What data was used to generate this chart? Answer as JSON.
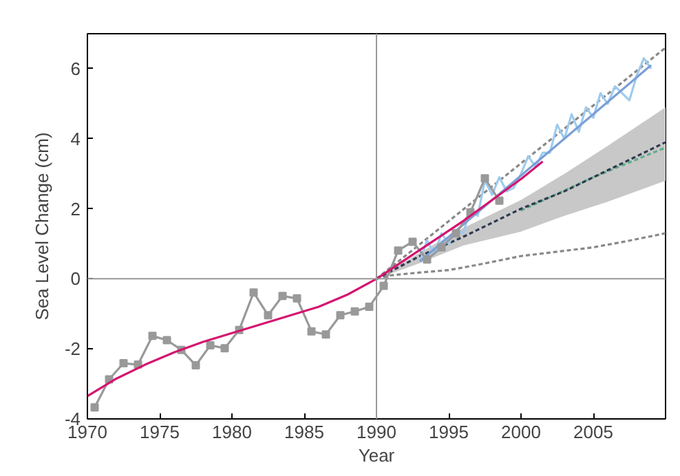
{
  "chart_data": {
    "type": "line",
    "xlabel": "Year",
    "ylabel": "Sea Level Change (cm)",
    "xlim": [
      1970,
      2010
    ],
    "ylim": [
      -4,
      7
    ],
    "xticks": [
      1970,
      1975,
      1980,
      1985,
      1990,
      1995,
      2000,
      2005
    ],
    "yticks": [
      -4,
      -2,
      0,
      2,
      4,
      6
    ],
    "grid": false,
    "ref_lines": [
      {
        "axis": "x",
        "value": 1990,
        "color": "#999999"
      },
      {
        "axis": "y",
        "value": 0,
        "color": "#999999"
      }
    ],
    "series": [
      {
        "color": "#888888",
        "marker": "none",
        "line_style": "dashed",
        "x": [
          1990,
          1991,
          1993,
          1995,
          1997,
          2000,
          2003,
          2005,
          2007,
          2010
        ],
        "values": [
          0,
          0.1,
          0.18,
          0.25,
          0.4,
          0.65,
          0.8,
          0.9,
          1.05,
          1.3
        ]
      },
      {
        "color": "#888888",
        "marker": "none",
        "line_style": "dashed",
        "x": [
          1990,
          2010
        ],
        "values": [
          0,
          6.6
        ]
      },
      {
        "color": "#5fae8a",
        "marker": "none",
        "line_style": "dashed",
        "x": [
          2000,
          2005,
          2010
        ],
        "values": [
          1.95,
          2.9,
          3.75
        ]
      },
      {
        "color": "#2f3a4f",
        "marker": "none",
        "line_style": "dashed",
        "x": [
          1990,
          1993,
          1996,
          2000,
          2003,
          2006,
          2010
        ],
        "lower": [
          0,
          0.45,
          0.95,
          1.35,
          1.8,
          2.2,
          2.8
        ],
        "upper": [
          0,
          0.75,
          1.45,
          2.25,
          3.0,
          3.8,
          4.9
        ],
        "values": [
          0,
          0.65,
          1.2,
          2.0,
          2.5,
          3.1,
          3.9
        ]
      },
      {
        "color": "#9ecbee",
        "marker": "none",
        "line_style": "solid",
        "x": [
          1993,
          1993.5,
          1994,
          1994.5,
          1995,
          1995.5,
          1996,
          1996.5,
          1997,
          1997.5,
          1998,
          1998.5,
          1999,
          1999.5,
          2000,
          2000.5,
          2001,
          2001.5,
          2002,
          2002.5,
          2003,
          2003.5,
          2004,
          2004.5,
          2005,
          2005.5,
          2006,
          2006.5,
          2007,
          2007.5,
          2008,
          2008.5,
          2009
        ],
        "values": [
          0.5,
          1.1,
          0.7,
          1.3,
          1.0,
          1.4,
          1.3,
          2.0,
          1.8,
          2.8,
          2.4,
          2.9,
          2.5,
          2.6,
          3.0,
          3.5,
          3.2,
          3.6,
          3.6,
          4.4,
          4.0,
          4.7,
          4.2,
          4.9,
          4.6,
          5.3,
          5.0,
          5.5,
          5.3,
          5.1,
          5.8,
          6.3,
          6.0
        ]
      },
      {
        "color": "#7a9fd6",
        "marker": "none",
        "line_style": "solid",
        "x": [
          1993,
          2009
        ],
        "values": [
          0.5,
          6.1
        ]
      },
      {
        "color": "#999999",
        "marker": "square",
        "line_style": "solid",
        "x": [
          1970.5,
          1971.5,
          1972.5,
          1973.5,
          1974.5,
          1975.5,
          1976.5,
          1977.5,
          1978.5,
          1979.5,
          1980.5,
          1981.5,
          1982.5,
          1983.5,
          1984.5,
          1985.5,
          1986.5,
          1987.5,
          1988.5,
          1989.5,
          1990.5,
          1991.5,
          1992.5,
          1993.5,
          1994.5,
          1995.5,
          1996.5,
          1997.5,
          1998.5
        ],
        "values": [
          -3.67,
          -2.87,
          -2.41,
          -2.45,
          -1.63,
          -1.75,
          -2.03,
          -2.47,
          -1.9,
          -1.98,
          -1.46,
          -0.39,
          -1.04,
          -0.49,
          -0.56,
          -1.5,
          -1.59,
          -1.04,
          -0.93,
          -0.8,
          -0.2,
          0.81,
          1.06,
          0.55,
          0.9,
          1.3,
          1.9,
          2.87,
          2.23
        ]
      },
      {
        "color": "#d4146f",
        "marker": "none",
        "line_style": "solid",
        "x": [
          1970,
          1972,
          1974,
          1976,
          1978,
          1980,
          1982,
          1984,
          1986,
          1988,
          1990,
          1992,
          1994,
          1996,
          1998,
          2000,
          2001.5
        ],
        "values": [
          -3.35,
          -2.85,
          -2.45,
          -2.1,
          -1.8,
          -1.55,
          -1.3,
          -1.05,
          -0.8,
          -0.45,
          0,
          0.55,
          1.1,
          1.65,
          2.25,
          2.85,
          3.35
        ]
      }
    ]
  }
}
